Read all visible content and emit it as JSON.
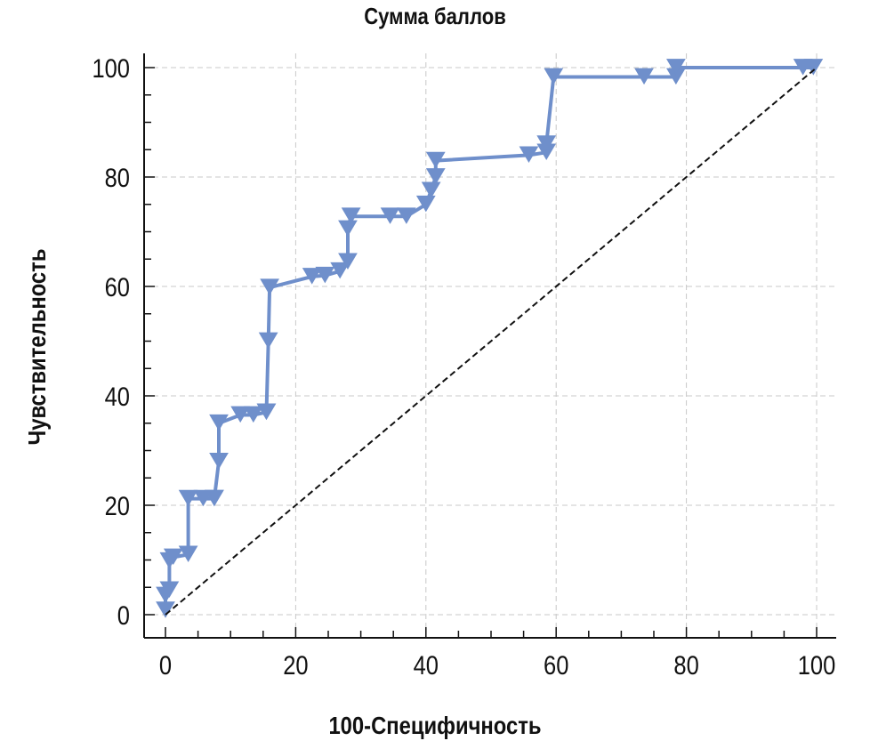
{
  "chart_data": {
    "type": "line",
    "title": "Сумма баллов",
    "xlabel": "100-Специфичность",
    "ylabel": "Чувствительность",
    "xlim": [
      0,
      100
    ],
    "ylim": [
      0,
      100
    ],
    "xticks": [
      0,
      20,
      40,
      60,
      80,
      100
    ],
    "yticks": [
      0,
      20,
      40,
      60,
      80,
      100
    ],
    "x_tick_labels": [
      "0",
      "20",
      "40",
      "60",
      "80",
      "100"
    ],
    "y_tick_labels": [
      "0",
      "20",
      "40",
      "60",
      "80",
      "100"
    ],
    "grid": true,
    "series": [
      {
        "color": "#6f8fcb",
        "marker": "triangle-down",
        "x": [
          0,
          0,
          0.6,
          0.6,
          1.2,
          3.5,
          3.5,
          5.8,
          7.5,
          7.5,
          8.2,
          8.2,
          11.5,
          13.5,
          15.5,
          15.5,
          15.8,
          16.0,
          22.5,
          24.5,
          26.8,
          28.0,
          28.0,
          28.5,
          34.5,
          37.0,
          40.0,
          40.8,
          41.5,
          41.5,
          55.8,
          58.5,
          58.5,
          59.6,
          73.5,
          78.4,
          78.4,
          97.9,
          99.5
        ],
        "y": [
          0.8,
          3.5,
          4.5,
          9.8,
          10.5,
          11.0,
          21.2,
          21.2,
          21.2,
          21.2,
          28.0,
          35.0,
          36.5,
          36.5,
          37.0,
          37.0,
          50.0,
          59.8,
          61.8,
          62.0,
          62.8,
          64.5,
          70.5,
          72.8,
          72.8,
          72.8,
          75.0,
          77.5,
          80.0,
          83.0,
          84.0,
          84.5,
          86.0,
          98.3,
          98.3,
          98.3,
          100,
          100,
          100
        ]
      },
      {
        "style": "dashed",
        "color": "#111111",
        "x": [
          0,
          100
        ],
        "y": [
          0,
          100
        ]
      }
    ]
  }
}
